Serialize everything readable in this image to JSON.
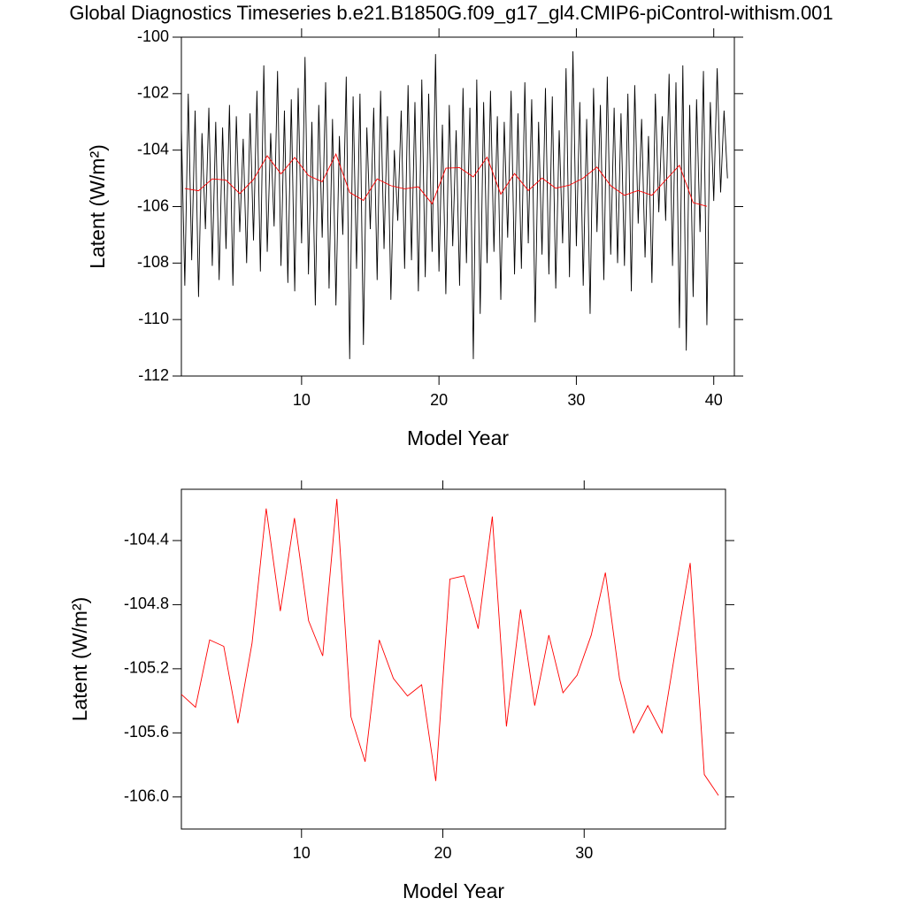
{
  "chart_data": [
    {
      "type": "line",
      "title": "Global Diagnostics Timeseries b.e21.B1850G.f09_g17_gl4.CMIP6-piControl-withism.001",
      "xlabel": "Model Year",
      "ylabel": "Latent (W/m²)",
      "xlim": [
        1.25,
        41.5
      ],
      "ylim": [
        -112,
        -100
      ],
      "xticks": [
        10,
        20,
        30,
        40
      ],
      "yticks": [
        -112,
        -110,
        -108,
        -106,
        -104,
        -102,
        -100
      ],
      "series": [
        {
          "color": "#000000",
          "x": [
            1.25,
            1.5,
            1.75,
            2,
            2.25,
            2.5,
            2.75,
            3,
            3.25,
            3.5,
            3.75,
            4,
            4.25,
            4.5,
            4.75,
            5,
            5.25,
            5.5,
            5.75,
            6,
            6.25,
            6.5,
            6.75,
            7,
            7.25,
            7.5,
            7.75,
            8,
            8.25,
            8.5,
            8.75,
            9,
            9.25,
            9.5,
            9.75,
            10,
            10.25,
            10.5,
            10.75,
            11,
            11.25,
            11.5,
            11.75,
            12,
            12.25,
            12.5,
            12.75,
            13,
            13.25,
            13.5,
            13.75,
            14,
            14.25,
            14.5,
            14.75,
            15,
            15.25,
            15.5,
            15.75,
            16,
            16.25,
            16.5,
            16.75,
            17,
            17.25,
            17.5,
            17.75,
            18,
            18.25,
            18.5,
            18.75,
            19,
            19.25,
            19.5,
            19.75,
            20,
            20.25,
            20.5,
            20.75,
            21,
            21.25,
            21.5,
            21.75,
            22,
            22.25,
            22.5,
            22.75,
            23,
            23.25,
            23.5,
            23.75,
            24,
            24.25,
            24.5,
            24.75,
            25,
            25.25,
            25.5,
            25.75,
            26,
            26.25,
            26.5,
            26.75,
            27,
            27.25,
            27.5,
            27.75,
            28,
            28.25,
            28.5,
            28.75,
            29,
            29.25,
            29.5,
            29.75,
            30,
            30.25,
            30.5,
            30.75,
            31,
            31.25,
            31.5,
            31.75,
            32,
            32.25,
            32.5,
            32.75,
            33,
            33.25,
            33.5,
            33.75,
            34,
            34.25,
            34.5,
            34.75,
            35,
            35.25,
            35.5,
            35.75,
            36,
            36.25,
            36.5,
            36.75,
            37,
            37.25,
            37.5,
            37.75,
            38,
            38.25,
            38.5,
            38.75,
            39,
            39.25,
            39.5,
            39.75,
            40,
            40.25,
            40.5,
            40.75,
            41
          ],
          "values": [
            -103.2,
            -108.8,
            -102.0,
            -107.9,
            -102.6,
            -109.2,
            -103.4,
            -106.8,
            -102.5,
            -108.1,
            -103.0,
            -108.6,
            -103.2,
            -107.5,
            -102.4,
            -108.8,
            -102.8,
            -106.9,
            -103.6,
            -108.0,
            -102.7,
            -107.2,
            -101.9,
            -108.3,
            -101.0,
            -107.6,
            -103.4,
            -106.7,
            -101.2,
            -108.1,
            -102.6,
            -108.7,
            -102.2,
            -109.0,
            -101.8,
            -107.3,
            -100.7,
            -108.4,
            -103.0,
            -109.5,
            -102.4,
            -107.1,
            -101.6,
            -108.9,
            -102.9,
            -109.5,
            -103.5,
            -107.0,
            -101.4,
            -111.4,
            -102.1,
            -108.2,
            -102.0,
            -110.9,
            -103.2,
            -106.8,
            -102.5,
            -108.6,
            -101.9,
            -107.5,
            -102.8,
            -109.3,
            -104.0,
            -106.5,
            -102.6,
            -108.2,
            -101.7,
            -107.9,
            -102.3,
            -109.0,
            -101.5,
            -108.5,
            -102.0,
            -107.6,
            -100.6,
            -108.3,
            -103.1,
            -109.1,
            -102.4,
            -107.4,
            -103.3,
            -108.8,
            -101.8,
            -108.0,
            -102.5,
            -111.4,
            -101.5,
            -109.8,
            -102.3,
            -108.0,
            -101.9,
            -107.6,
            -102.8,
            -109.3,
            -103.0,
            -107.1,
            -101.9,
            -108.4,
            -102.7,
            -108.2,
            -101.6,
            -107.3,
            -102.2,
            -110.1,
            -103.0,
            -107.7,
            -101.8,
            -108.4,
            -102.1,
            -108.9,
            -103.3,
            -107.3,
            -101.1,
            -108.5,
            -100.5,
            -107.4,
            -102.3,
            -108.8,
            -102.9,
            -109.8,
            -101.8,
            -106.9,
            -102.4,
            -108.6,
            -101.4,
            -107.7,
            -102.5,
            -108.0,
            -102.7,
            -108.1,
            -102.0,
            -109.0,
            -101.7,
            -106.6,
            -102.9,
            -107.8,
            -103.5,
            -108.7,
            -102.0,
            -106.2,
            -102.8,
            -106.5,
            -101.3,
            -108.1,
            -101.6,
            -110.3,
            -101.0,
            -111.1,
            -102.4,
            -109.2,
            -102.2,
            -106.9,
            -101.2,
            -110.2,
            -102.3,
            -105.8,
            -101.1,
            -105.5,
            -102.6,
            -105.0
          ]
        },
        {
          "color": "#ff0000",
          "x": [
            1.5,
            2.5,
            3.5,
            4.5,
            5.5,
            6.5,
            7.5,
            8.5,
            9.5,
            10.5,
            11.5,
            12.5,
            13.5,
            14.5,
            15.5,
            16.5,
            17.5,
            18.5,
            19.5,
            20.5,
            21.5,
            22.5,
            23.5,
            24.5,
            25.5,
            26.5,
            27.5,
            28.5,
            29.5,
            30.5,
            31.5,
            32.5,
            33.5,
            34.5,
            35.5,
            36.5,
            37.5,
            38.5,
            39.5
          ],
          "values": [
            -105.36,
            -105.44,
            -105.02,
            -105.06,
            -105.54,
            -105.04,
            -104.2,
            -104.84,
            -104.26,
            -104.9,
            -105.12,
            -104.14,
            -105.5,
            -105.78,
            -105.02,
            -105.26,
            -105.37,
            -105.3,
            -105.9,
            -104.64,
            -104.62,
            -104.95,
            -104.25,
            -105.56,
            -104.83,
            -105.43,
            -104.99,
            -105.35,
            -105.24,
            -104.99,
            -104.6,
            -105.26,
            -105.6,
            -105.43,
            -105.6,
            -105.06,
            -104.54,
            -105.86,
            -105.99
          ]
        }
      ]
    },
    {
      "type": "line",
      "xlabel": "Model Year",
      "ylabel": "Latent (W/m²)",
      "xlim": [
        1.5,
        40
      ],
      "ylim": [
        -106.2,
        -104.08
      ],
      "xticks": [
        10,
        20,
        30
      ],
      "yticks": [
        -104.4,
        -104.8,
        -105.2,
        -105.6,
        {
          "value": -106,
          "label": "-106.0"
        }
      ],
      "series": [
        {
          "color": "#ff0000",
          "x": [
            1.5,
            2.5,
            3.5,
            4.5,
            5.5,
            6.5,
            7.5,
            8.5,
            9.5,
            10.5,
            11.5,
            12.5,
            13.5,
            14.5,
            15.5,
            16.5,
            17.5,
            18.5,
            19.5,
            20.5,
            21.5,
            22.5,
            23.5,
            24.5,
            25.5,
            26.5,
            27.5,
            28.5,
            29.5,
            30.5,
            31.5,
            32.5,
            33.5,
            34.5,
            35.5,
            36.5,
            37.5,
            38.5,
            39.5
          ],
          "values": [
            -105.36,
            -105.44,
            -105.02,
            -105.06,
            -105.54,
            -105.04,
            -104.2,
            -104.84,
            -104.26,
            -104.9,
            -105.12,
            -104.14,
            -105.5,
            -105.78,
            -105.02,
            -105.26,
            -105.37,
            -105.3,
            -105.9,
            -104.64,
            -104.62,
            -104.95,
            -104.25,
            -105.56,
            -104.83,
            -105.43,
            -104.99,
            -105.35,
            -105.24,
            -104.99,
            -104.6,
            -105.26,
            -105.6,
            -105.43,
            -105.6,
            -105.06,
            -104.54,
            -105.86,
            -105.99
          ]
        }
      ]
    }
  ]
}
